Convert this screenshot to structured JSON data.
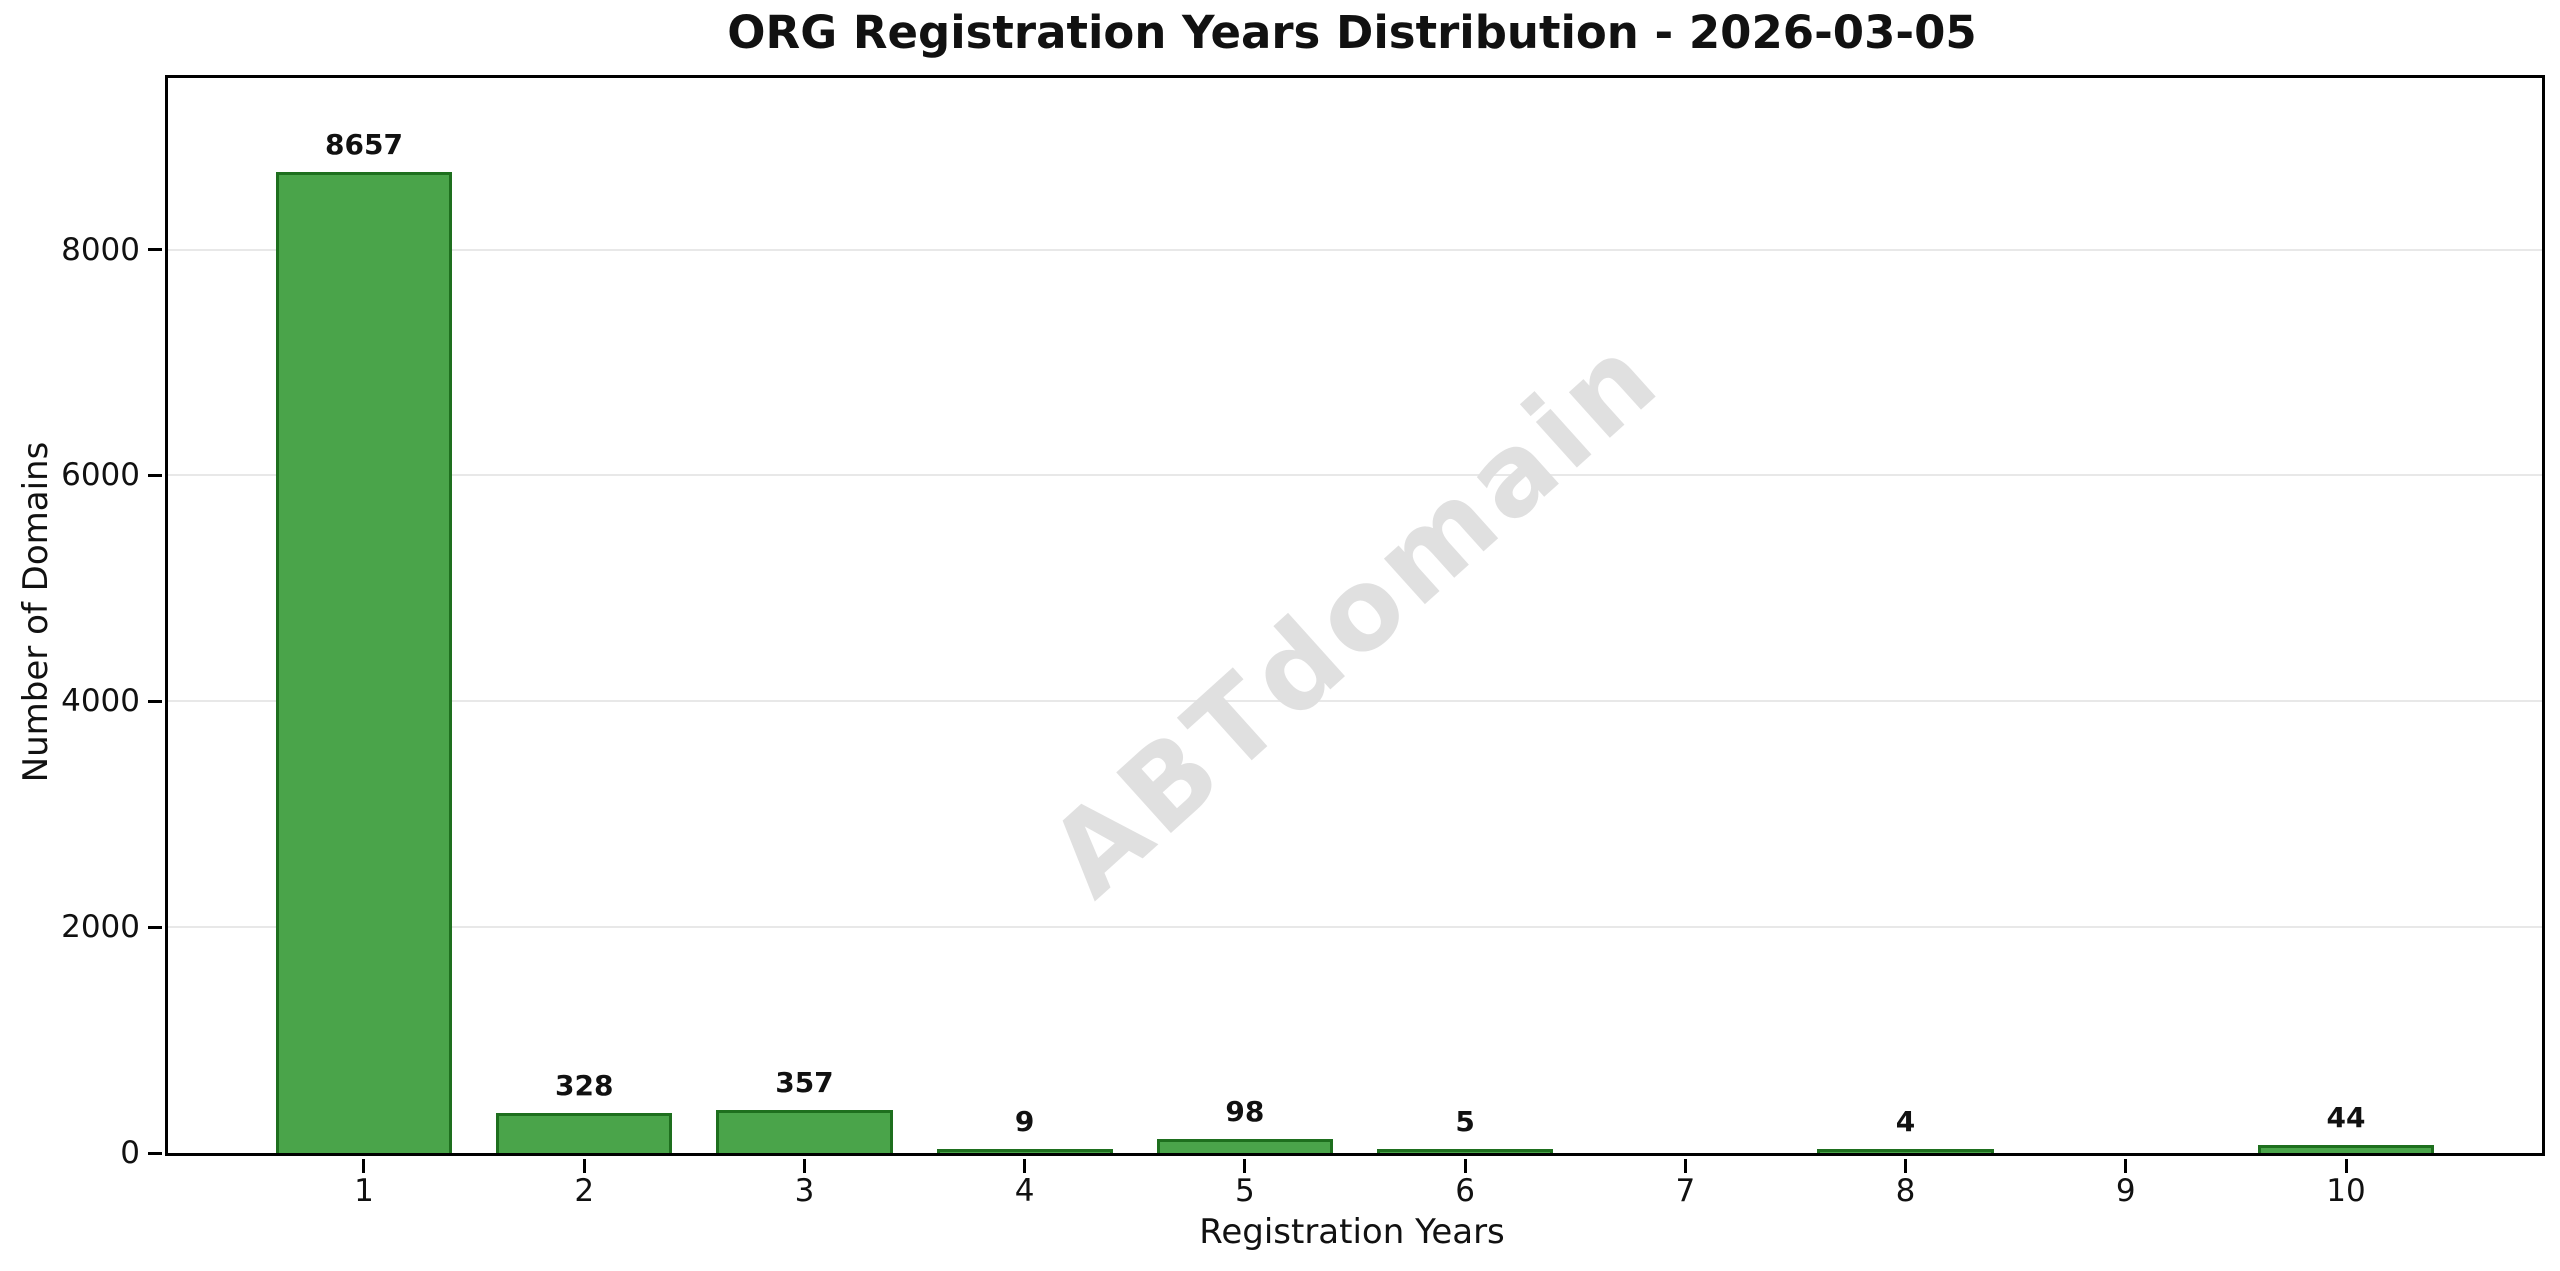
{
  "figure": {
    "watermark": "ABTdomain"
  },
  "chart_data": {
    "type": "bar",
    "title": "ORG Registration Years Distribution - 2026-03-05",
    "xlabel": "Registration Years",
    "ylabel": "Number of Domains",
    "categories": [
      "1",
      "2",
      "3",
      "4",
      "5",
      "6",
      "7",
      "8",
      "9",
      "10"
    ],
    "values": [
      8657,
      328,
      357,
      9,
      98,
      5,
      0,
      4,
      0,
      44
    ],
    "bar_labels": [
      "8657",
      "328",
      "357",
      "9",
      "98",
      "5",
      "",
      "4",
      "",
      "44"
    ],
    "xlim": [
      0.11,
      10.89
    ],
    "ylim": [
      0,
      9520
    ],
    "yticks": [
      0,
      2000,
      4000,
      6000,
      8000
    ],
    "ytick_labels": [
      "0",
      "2000",
      "4000",
      "6000",
      "8000"
    ],
    "bar_width_units": 0.8,
    "grid": "horizontal",
    "legend": "none",
    "colors": {
      "bar_fill": "#4aa44a",
      "bar_edge": "#1e6f1e",
      "grid": "#e8e8e8",
      "spine": "#000000",
      "watermark": "#e0e0e0",
      "text": "#111111"
    }
  }
}
